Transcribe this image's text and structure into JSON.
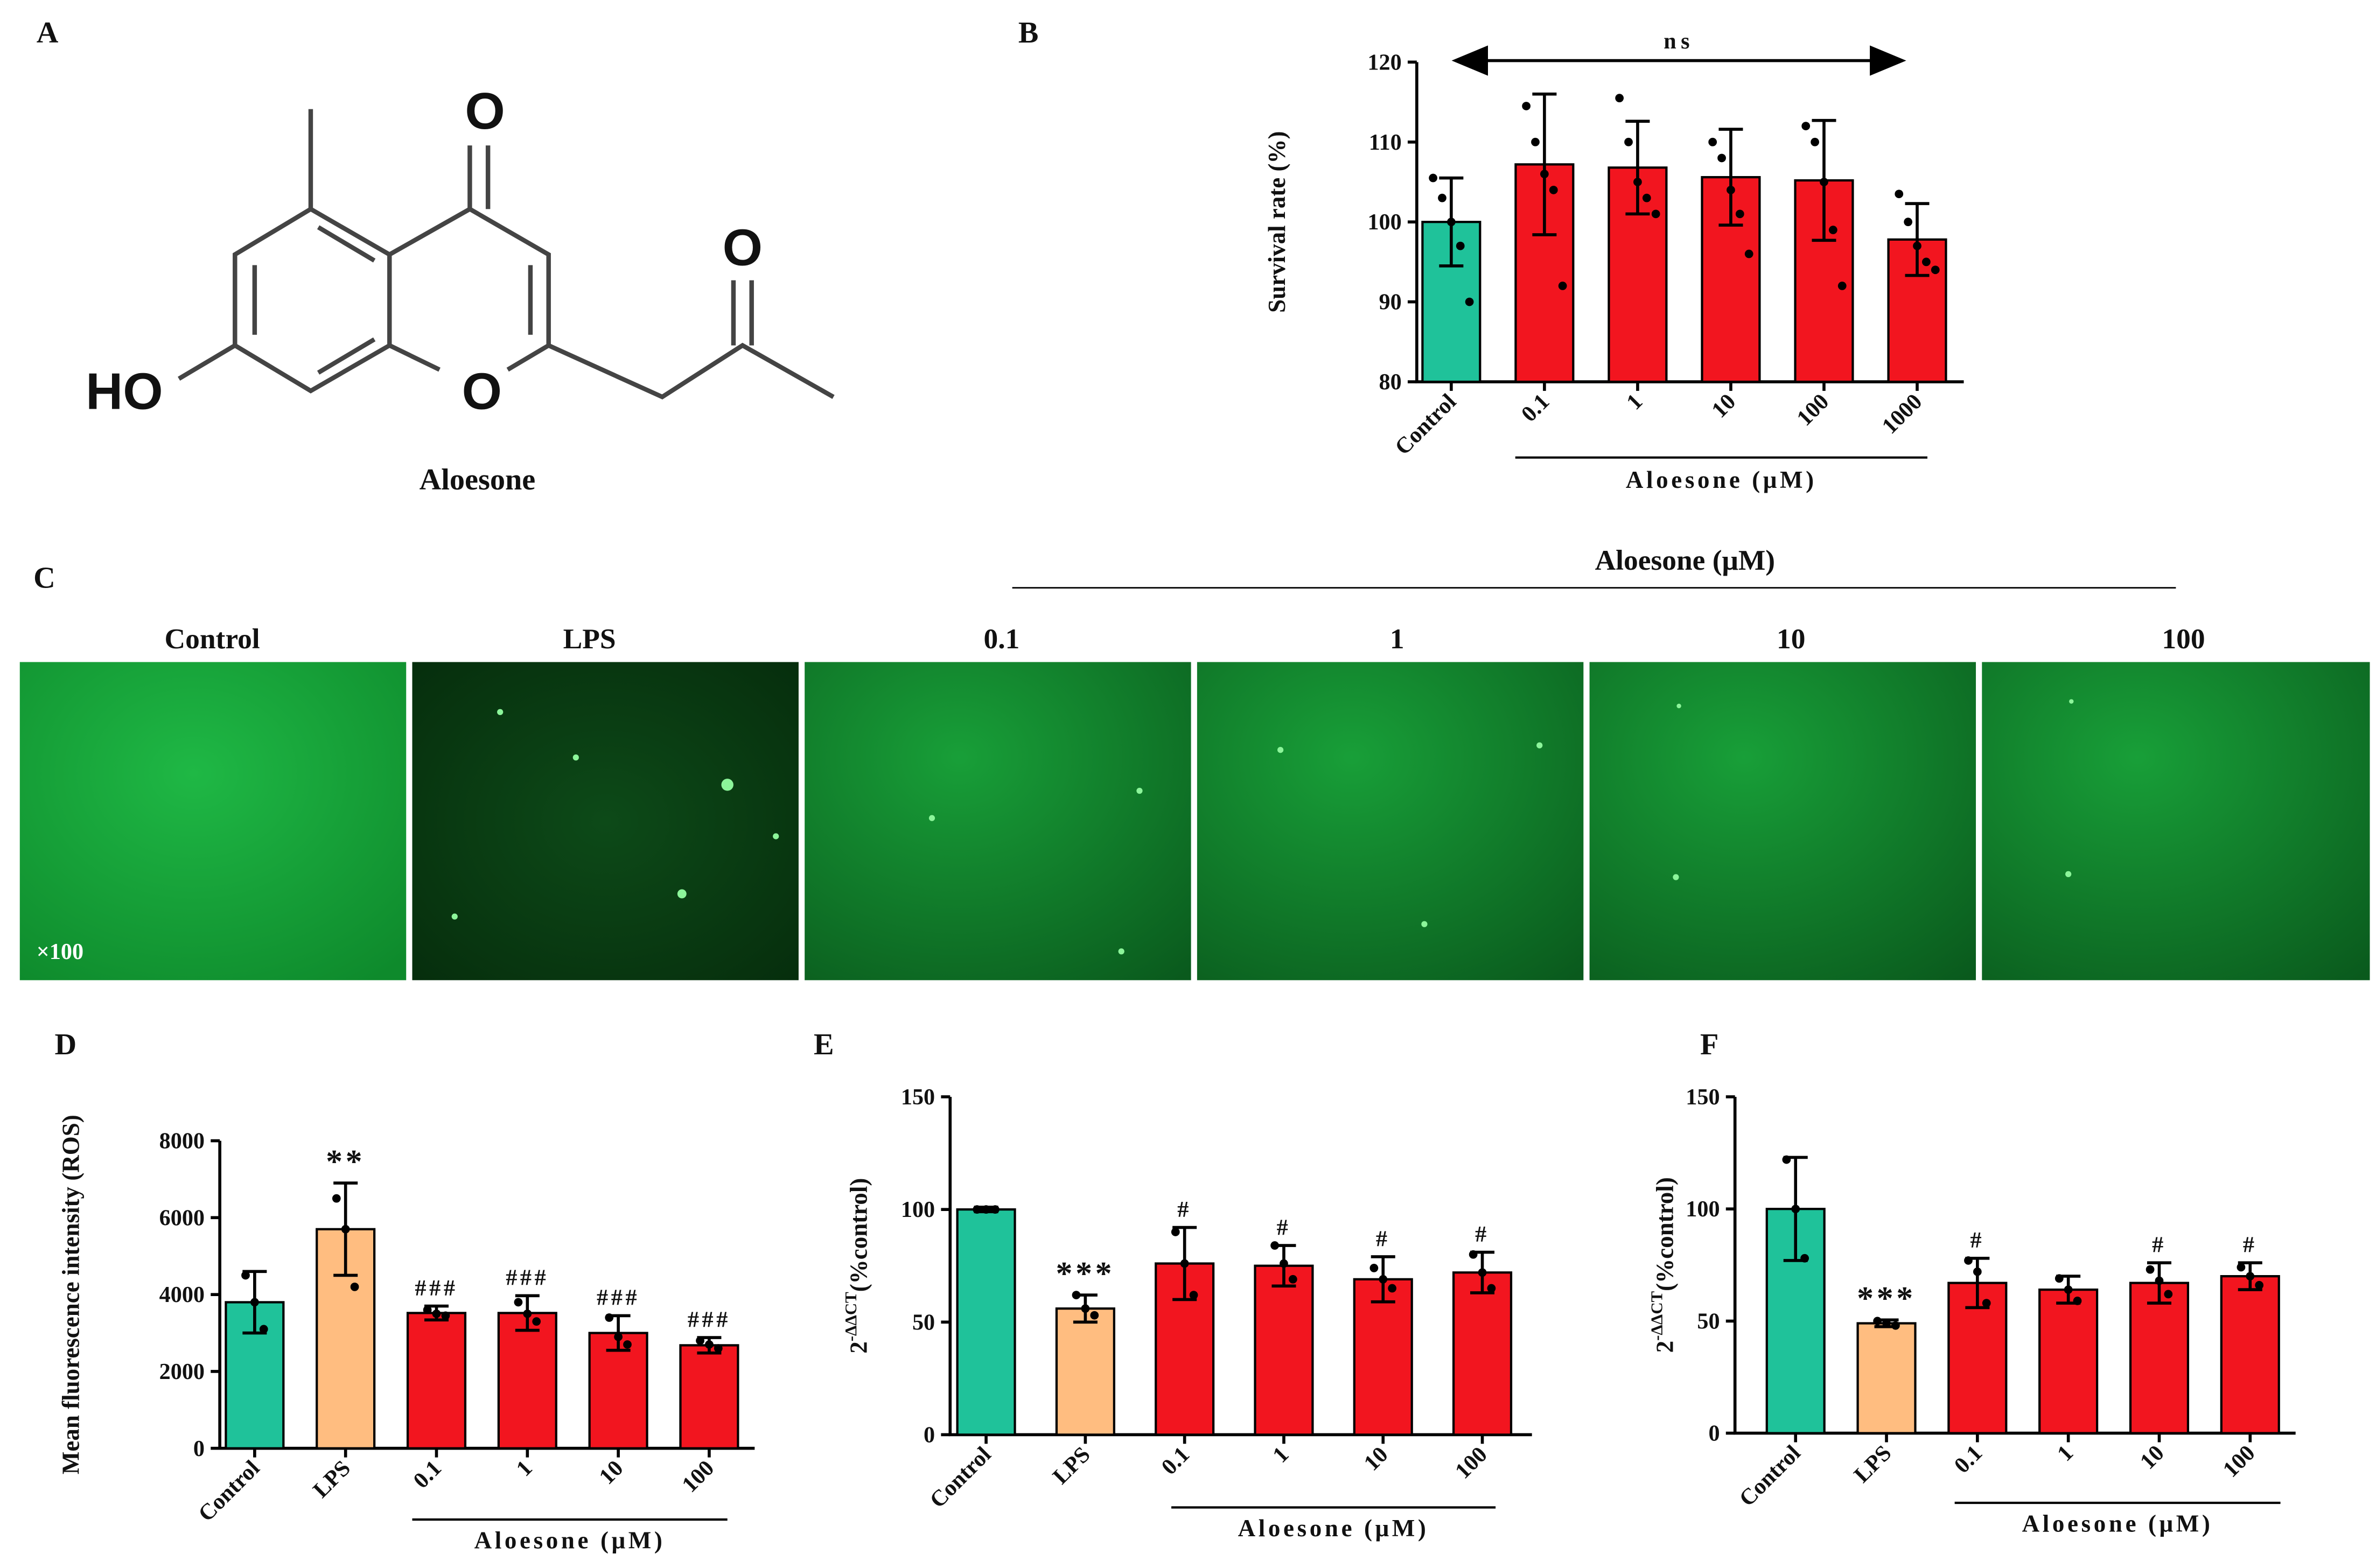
{
  "panel_labels": [
    "A",
    "B",
    "C",
    "D",
    "E",
    "F"
  ],
  "structure": {
    "atoms": [
      "O",
      "O",
      "O",
      "HO"
    ],
    "name": "Aloesone"
  },
  "images": {
    "group_label": "Aloesone (μM)",
    "titles": [
      "Control",
      "LPS",
      "0.1",
      "1",
      "10",
      "100"
    ],
    "magnification": "×100"
  },
  "chart_data": [
    {
      "type": "bar",
      "categories": [
        "Control",
        "0.1",
        "1",
        "10",
        "100",
        "1000"
      ],
      "values": [
        100,
        107.2,
        106.8,
        105.6,
        105.2,
        97.8
      ],
      "errors": [
        5.5,
        8.8,
        5.8,
        6,
        7.5,
        4.5
      ],
      "points": [
        [
          105.5,
          103,
          100,
          97,
          90
        ],
        [
          114.5,
          110,
          106,
          104,
          92
        ],
        [
          115.5,
          110,
          105,
          103,
          101
        ],
        [
          110,
          108,
          104,
          101,
          96
        ],
        [
          112,
          110,
          105,
          99,
          92
        ],
        [
          103.5,
          100,
          97,
          95,
          94
        ]
      ],
      "colors": [
        "#1fc29a",
        "#f2151f",
        "#f2151f",
        "#f2151f",
        "#f2151f",
        "#f2151f"
      ],
      "ylim": [
        80,
        120
      ],
      "yticks": [
        80,
        90,
        100,
        110,
        120
      ],
      "ylabel": "Survival rate (%)",
      "group_label": "Aloesone (μM)",
      "annotation": "ns"
    },
    {
      "type": "bar",
      "categories": [
        "Control",
        "LPS",
        "0.1",
        "1",
        "10",
        "100"
      ],
      "values": [
        3800,
        5700,
        3520,
        3520,
        3000,
        2680
      ],
      "errors": [
        800,
        1200,
        180,
        450,
        450,
        200
      ],
      "points": [
        [
          4500,
          3800,
          3100
        ],
        [
          6500,
          5700,
          4200
        ],
        [
          3600,
          3500,
          3450
        ],
        [
          3800,
          3500,
          3300
        ],
        [
          3400,
          2900,
          2700
        ],
        [
          2800,
          2700,
          2600
        ]
      ],
      "colors": [
        "#1fc29a",
        "#ffbd80",
        "#f2151f",
        "#f2151f",
        "#f2151f",
        "#f2151f"
      ],
      "ylim": [
        0,
        8000
      ],
      "yticks": [
        0,
        2000,
        4000,
        6000,
        8000
      ],
      "ylabel": "Mean fluorescence intensity (ROS)",
      "group_label": "Aloesone (μM)",
      "annotations": [
        null,
        "**",
        "###",
        "###",
        "###",
        "###"
      ]
    },
    {
      "type": "bar",
      "categories": [
        "Control",
        "LPS",
        "0.1",
        "1",
        "10",
        "100"
      ],
      "values": [
        100,
        56,
        76,
        75,
        69,
        72
      ],
      "errors": [
        1,
        6,
        16,
        9,
        10,
        9
      ],
      "points": [
        [
          100,
          100,
          100
        ],
        [
          62,
          56,
          53
        ],
        [
          90,
          76,
          62
        ],
        [
          84,
          76,
          69
        ],
        [
          74,
          69,
          65
        ],
        [
          80,
          72,
          65
        ]
      ],
      "colors": [
        "#1fc29a",
        "#ffbd80",
        "#f2151f",
        "#f2151f",
        "#f2151f",
        "#f2151f"
      ],
      "ylim": [
        0,
        150
      ],
      "yticks": [
        0,
        50,
        100,
        150
      ],
      "ylabel_parts": [
        "2",
        "-ΔΔCT",
        "(%control)"
      ],
      "group_label": "Aloesone (μM)",
      "annotations": [
        null,
        "***",
        "#",
        "#",
        "#",
        "#"
      ]
    },
    {
      "type": "bar",
      "categories": [
        "Control",
        "LPS",
        "0.1",
        "1",
        "10",
        "100"
      ],
      "values": [
        100,
        49,
        67,
        64,
        67,
        70
      ],
      "errors": [
        23,
        1.5,
        11,
        6,
        9,
        6
      ],
      "points": [
        [
          122,
          100,
          78
        ],
        [
          50,
          49,
          48
        ],
        [
          77,
          72,
          58
        ],
        [
          69,
          64,
          59
        ],
        [
          73,
          68,
          62
        ],
        [
          74,
          70,
          66
        ]
      ],
      "colors": [
        "#1fc29a",
        "#ffbd80",
        "#f2151f",
        "#f2151f",
        "#f2151f",
        "#f2151f"
      ],
      "ylim": [
        0,
        150
      ],
      "yticks": [
        0,
        50,
        100,
        150
      ],
      "ylabel_parts": [
        "2",
        "-ΔΔCT",
        "(%control)"
      ],
      "group_label": "Aloesone (μM)",
      "annotations": [
        null,
        "***",
        "#",
        null,
        "#",
        "#"
      ]
    }
  ]
}
